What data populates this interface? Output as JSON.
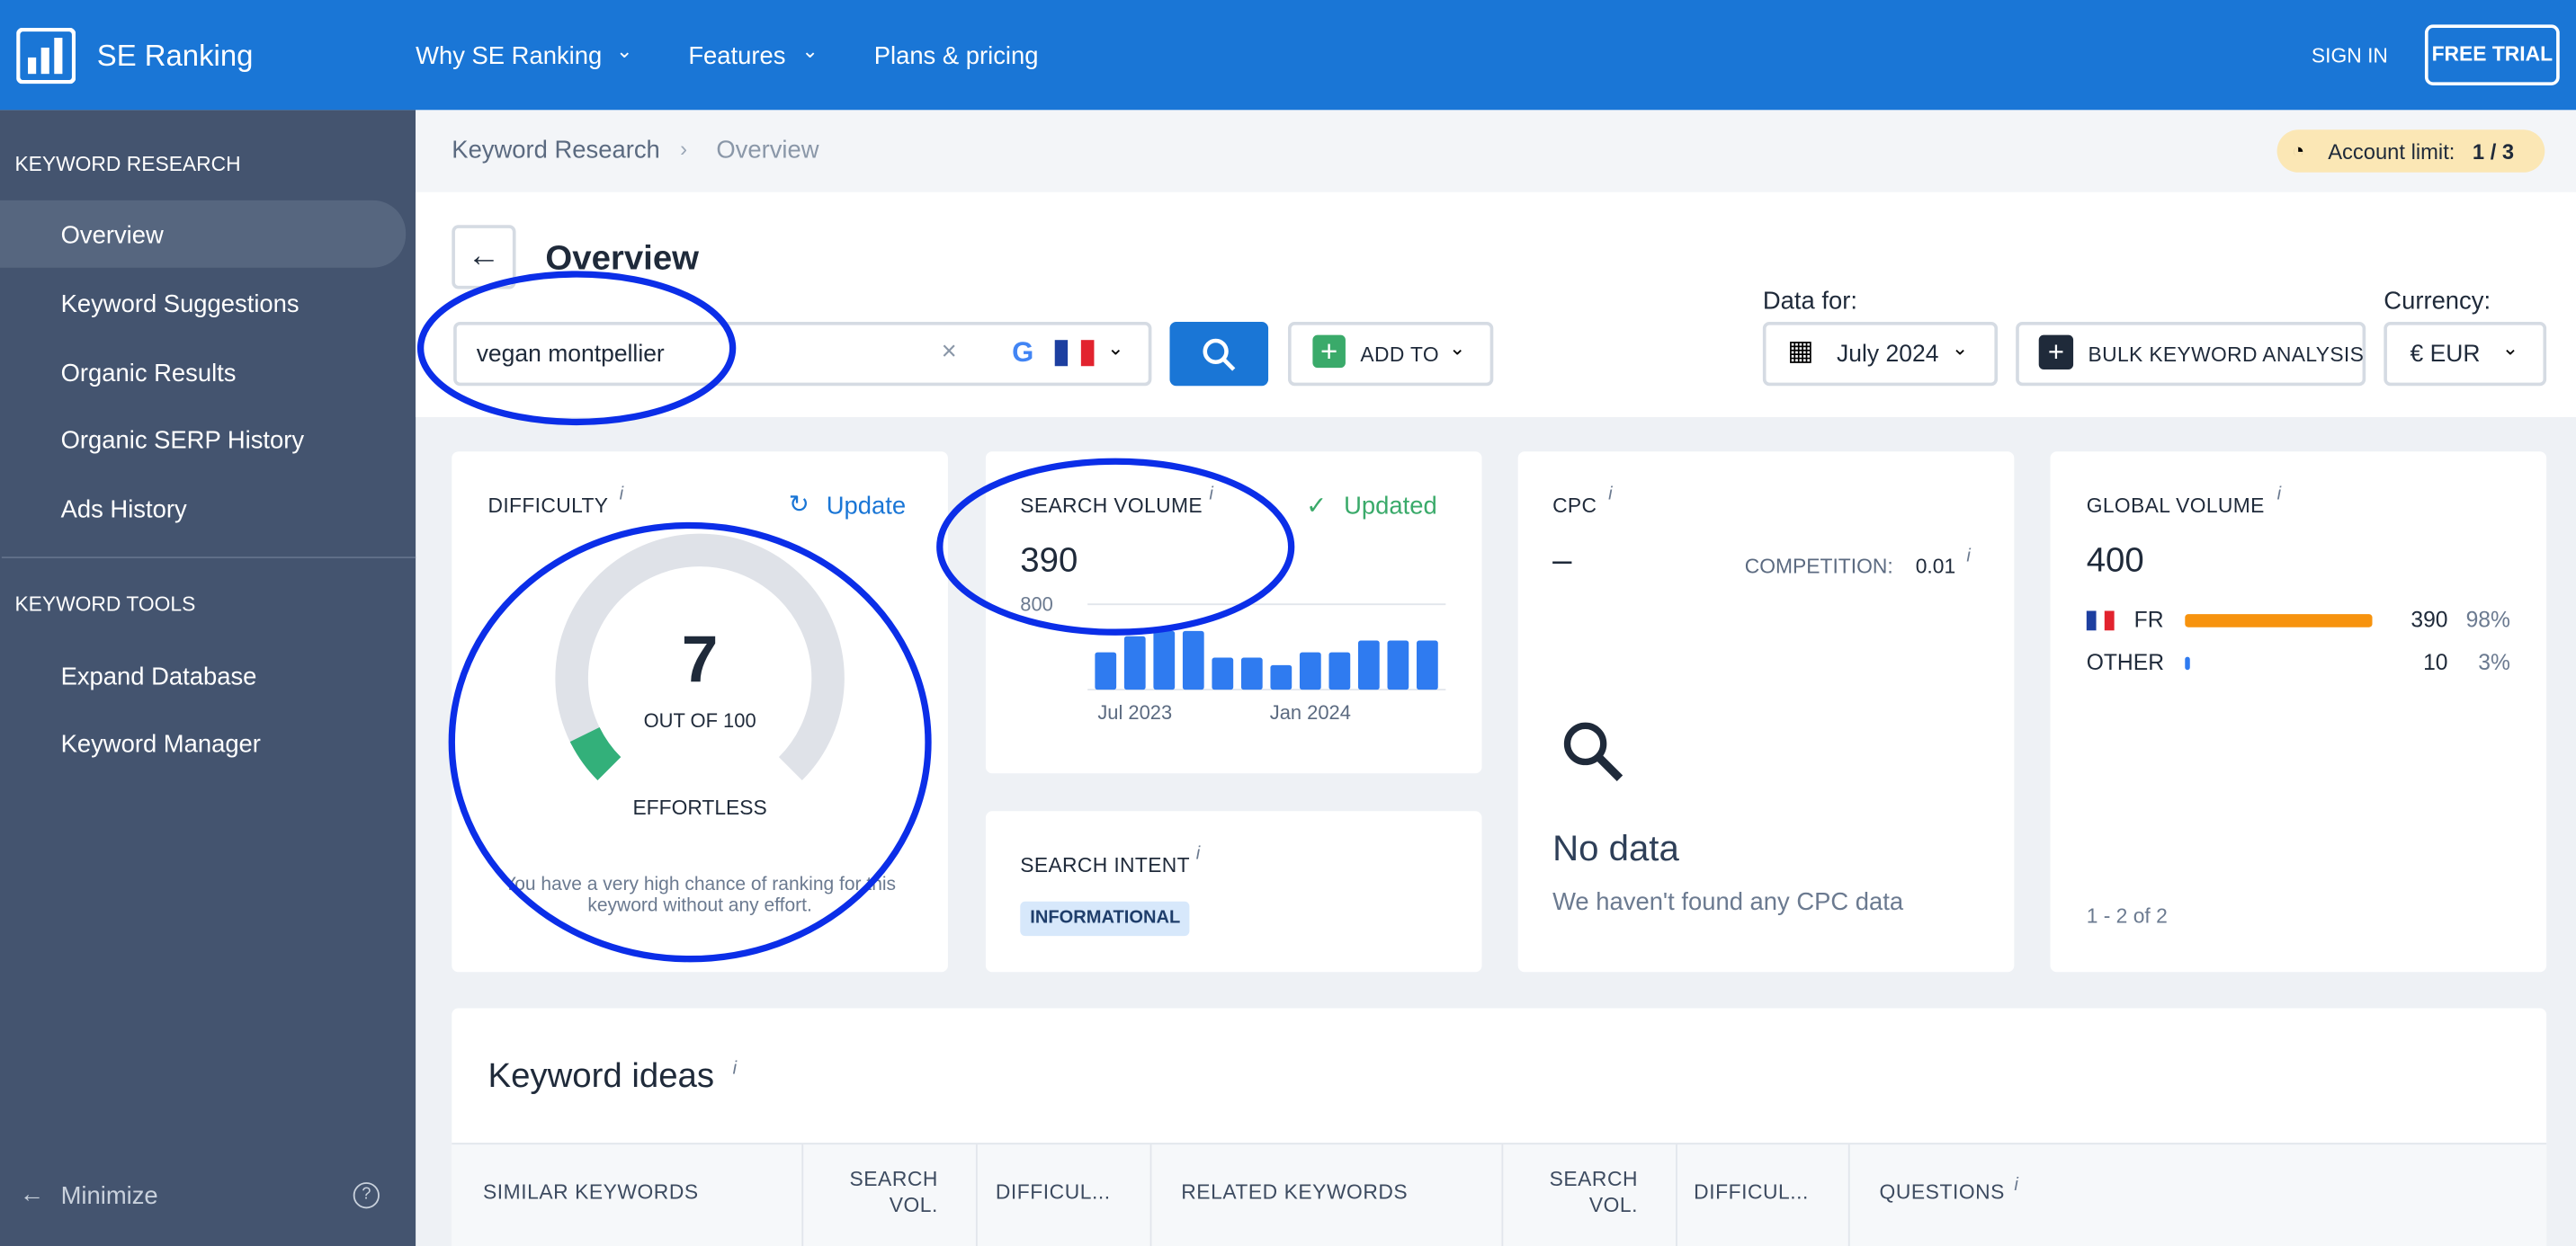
{
  "header": {
    "brand": "SE Ranking",
    "nav": [
      "Why SE Ranking",
      "Features",
      "Plans & pricing"
    ],
    "sign_in": "SIGN IN",
    "free_trial": "FREE TRIAL"
  },
  "sidebar": {
    "sections": [
      {
        "title": "KEYWORD RESEARCH",
        "items": [
          "Overview",
          "Keyword Suggestions",
          "Organic Results",
          "Organic SERP History",
          "Ads History"
        ]
      },
      {
        "title": "KEYWORD TOOLS",
        "items": [
          "Expand Database",
          "Keyword Manager"
        ]
      }
    ],
    "minimize": "Minimize"
  },
  "breadcrumbs": [
    "Keyword Research",
    "Overview"
  ],
  "account_limit": {
    "label": "Account limit:",
    "value": "1 / 3"
  },
  "page_title": "Overview",
  "search": {
    "query": "vegan montpellier",
    "add_to": "ADD TO"
  },
  "data_for": {
    "label": "Data for:",
    "value": "July 2024"
  },
  "bulk": "BULK KEYWORD ANALYSIS",
  "currency": {
    "label": "Currency:",
    "value": "€ EUR"
  },
  "difficulty": {
    "title": "DIFFICULTY",
    "update": "Update",
    "value": 7,
    "max": 100,
    "max_label": "OUT OF 100",
    "level": "EFFORTLESS",
    "note": "You have a very high chance of ranking for this keyword without any effort."
  },
  "search_volume": {
    "title": "SEARCH VOLUME",
    "status": "Updated",
    "value": 390,
    "chart_data": {
      "type": "bar",
      "color": "#2f7bf0",
      "ylim": [
        0,
        800
      ],
      "yticks": [
        800
      ],
      "categories": [
        null,
        "Jul 2023",
        null,
        null,
        null,
        null,
        null,
        "Jan 2024",
        null,
        null,
        null,
        null
      ],
      "values": [
        350,
        500,
        550,
        550,
        300,
        300,
        230,
        350,
        350,
        460,
        460,
        460
      ]
    }
  },
  "search_intent": {
    "title": "SEARCH INTENT",
    "value": "INFORMATIONAL"
  },
  "cpc": {
    "title": "CPC",
    "value": "–",
    "competition_label": "COMPETITION:",
    "competition": 0.01,
    "empty_title": "No data",
    "empty_text": "We haven't found any CPC data"
  },
  "global_volume": {
    "title": "GLOBAL VOLUME",
    "value": 400,
    "rows": [
      {
        "country": "FR",
        "volume": 390,
        "share": 98,
        "share_label": "98%",
        "color": "#f7930e"
      },
      {
        "country": "OTHER",
        "volume": 10,
        "share": 3,
        "share_label": "3%",
        "color": "#2f7bf0"
      }
    ],
    "pagination": "1 - 2 of 2"
  },
  "keyword_ideas": {
    "title": "Keyword ideas",
    "columns": [
      "SIMILAR KEYWORDS",
      "SEARCH VOL.",
      "DIFFICUL...",
      "RELATED KEYWORDS",
      "SEARCH VOL.",
      "DIFFICUL...",
      "QUESTIONS"
    ]
  }
}
